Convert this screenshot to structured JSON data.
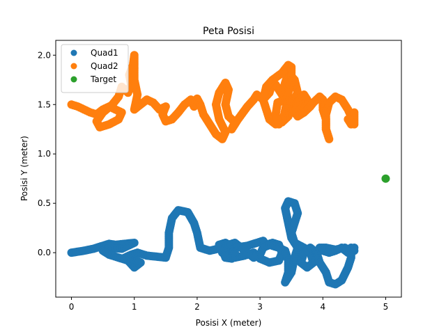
{
  "chart_data": {
    "type": "scatter",
    "title": "Peta Posisi",
    "xlabel": "Posisi X (meter)",
    "ylabel": "Posisi Y (meter)",
    "xlim": [
      -0.25,
      5.25
    ],
    "ylim": [
      -0.45,
      2.15
    ],
    "xticks": [
      0,
      1,
      2,
      3,
      4,
      5
    ],
    "xtick_labels": [
      "0",
      "1",
      "2",
      "3",
      "4",
      "5"
    ],
    "yticks": [
      0.0,
      0.5,
      1.0,
      1.5,
      2.0
    ],
    "ytick_labels": [
      "0.0",
      "0.5",
      "1.0",
      "1.5",
      "2.0"
    ],
    "grid": false,
    "legend_position": "top-left",
    "series": [
      {
        "name": "Quad1",
        "color": "#1f77b4",
        "points": [
          [
            0.0,
            0.0
          ],
          [
            0.2,
            0.02
          ],
          [
            0.35,
            0.04
          ],
          [
            0.5,
            0.07
          ],
          [
            0.6,
            0.09
          ],
          [
            0.7,
            0.08
          ],
          [
            0.85,
            0.09
          ],
          [
            1.0,
            0.1
          ],
          [
            0.8,
            0.04
          ],
          [
            0.6,
            0.05
          ],
          [
            0.5,
            0.02
          ],
          [
            0.6,
            -0.02
          ],
          [
            0.75,
            -0.05
          ],
          [
            0.9,
            -0.08
          ],
          [
            1.0,
            -0.15
          ],
          [
            1.1,
            -0.1
          ],
          [
            0.95,
            -0.06
          ],
          [
            0.85,
            -0.05
          ],
          [
            0.95,
            -0.02
          ],
          [
            1.05,
            0.0
          ],
          [
            1.2,
            -0.03
          ],
          [
            1.35,
            -0.04
          ],
          [
            1.5,
            -0.05
          ],
          [
            1.55,
            0.05
          ],
          [
            1.55,
            0.2
          ],
          [
            1.6,
            0.35
          ],
          [
            1.7,
            0.43
          ],
          [
            1.85,
            0.41
          ],
          [
            1.95,
            0.3
          ],
          [
            2.0,
            0.2
          ],
          [
            2.05,
            0.05
          ],
          [
            2.2,
            0.02
          ],
          [
            2.4,
            0.05
          ],
          [
            2.6,
            0.05
          ],
          [
            2.8,
            0.07
          ],
          [
            2.95,
            0.1
          ],
          [
            3.05,
            0.12
          ],
          [
            3.1,
            0.08
          ],
          [
            3.2,
            0.1
          ],
          [
            3.3,
            0.08
          ],
          [
            3.35,
            0.0
          ],
          [
            3.3,
            -0.08
          ],
          [
            3.15,
            -0.1
          ],
          [
            3.0,
            -0.06
          ],
          [
            2.9,
            0.0
          ],
          [
            2.75,
            -0.03
          ],
          [
            2.6,
            -0.05
          ],
          [
            2.5,
            -0.02
          ],
          [
            2.4,
            0.0
          ],
          [
            2.35,
            0.08
          ],
          [
            2.45,
            0.1
          ],
          [
            2.55,
            0.06
          ],
          [
            2.6,
            0.0
          ],
          [
            2.55,
            -0.06
          ],
          [
            2.45,
            -0.05
          ],
          [
            2.4,
            0.03
          ],
          [
            2.5,
            0.08
          ],
          [
            2.6,
            0.1
          ],
          [
            2.7,
            0.05
          ],
          [
            2.8,
            0.0
          ],
          [
            2.9,
            -0.05
          ],
          [
            3.0,
            -0.02
          ],
          [
            3.05,
            0.05
          ],
          [
            3.15,
            0.08
          ],
          [
            3.3,
            0.05
          ],
          [
            3.4,
            0.02
          ],
          [
            3.45,
            -0.08
          ],
          [
            3.45,
            -0.2
          ],
          [
            3.4,
            -0.3
          ],
          [
            3.5,
            -0.2
          ],
          [
            3.55,
            -0.05
          ],
          [
            3.6,
            0.05
          ],
          [
            3.5,
            0.15
          ],
          [
            3.45,
            0.3
          ],
          [
            3.4,
            0.45
          ],
          [
            3.45,
            0.52
          ],
          [
            3.55,
            0.5
          ],
          [
            3.6,
            0.4
          ],
          [
            3.55,
            0.3
          ],
          [
            3.5,
            0.2
          ],
          [
            3.55,
            0.1
          ],
          [
            3.7,
            0.05
          ],
          [
            3.8,
            0.0
          ],
          [
            3.85,
            -0.1
          ],
          [
            3.75,
            -0.15
          ],
          [
            3.65,
            -0.1
          ],
          [
            3.7,
            0.0
          ],
          [
            3.8,
            0.05
          ],
          [
            3.9,
            0.0
          ],
          [
            3.95,
            -0.1
          ],
          [
            4.05,
            -0.2
          ],
          [
            4.1,
            -0.3
          ],
          [
            4.2,
            -0.32
          ],
          [
            4.3,
            -0.28
          ],
          [
            4.4,
            -0.15
          ],
          [
            4.45,
            -0.05
          ],
          [
            4.45,
            0.05
          ],
          [
            4.5,
            0.02
          ],
          [
            4.4,
            0.0
          ],
          [
            4.3,
            0.05
          ],
          [
            4.2,
            0.02
          ],
          [
            4.1,
            0.0
          ],
          [
            4.0,
            0.02
          ],
          [
            3.95,
            0.05
          ],
          [
            4.05,
            0.05
          ],
          [
            4.2,
            0.03
          ],
          [
            4.35,
            0.05
          ],
          [
            4.45,
            0.0
          ],
          [
            4.5,
            0.05
          ]
        ]
      },
      {
        "name": "Quad2",
        "color": "#ff7f0e",
        "points": [
          [
            0.0,
            1.5
          ],
          [
            0.1,
            1.48
          ],
          [
            0.2,
            1.45
          ],
          [
            0.3,
            1.42
          ],
          [
            0.4,
            1.4
          ],
          [
            0.5,
            1.45
          ],
          [
            0.6,
            1.48
          ],
          [
            0.7,
            1.45
          ],
          [
            0.8,
            1.42
          ],
          [
            0.75,
            1.35
          ],
          [
            0.6,
            1.3
          ],
          [
            0.45,
            1.27
          ],
          [
            0.4,
            1.33
          ],
          [
            0.5,
            1.42
          ],
          [
            0.65,
            1.5
          ],
          [
            0.75,
            1.58
          ],
          [
            0.8,
            1.68
          ],
          [
            0.9,
            1.62
          ],
          [
            0.95,
            1.7
          ],
          [
            0.92,
            1.8
          ],
          [
            0.98,
            1.9
          ],
          [
            1.0,
            2.0
          ],
          [
            1.0,
            1.88
          ],
          [
            1.0,
            1.75
          ],
          [
            1.05,
            1.6
          ],
          [
            1.0,
            1.45
          ],
          [
            1.1,
            1.5
          ],
          [
            1.2,
            1.55
          ],
          [
            1.3,
            1.52
          ],
          [
            1.4,
            1.45
          ],
          [
            1.5,
            1.48
          ],
          [
            1.45,
            1.4
          ],
          [
            1.5,
            1.33
          ],
          [
            1.6,
            1.35
          ],
          [
            1.7,
            1.42
          ],
          [
            1.8,
            1.5
          ],
          [
            1.9,
            1.55
          ],
          [
            1.95,
            1.48
          ],
          [
            2.0,
            1.56
          ],
          [
            2.05,
            1.5
          ],
          [
            2.1,
            1.4
          ],
          [
            2.2,
            1.3
          ],
          [
            2.3,
            1.2
          ],
          [
            2.4,
            1.15
          ],
          [
            2.45,
            1.22
          ],
          [
            2.35,
            1.35
          ],
          [
            2.3,
            1.5
          ],
          [
            2.35,
            1.62
          ],
          [
            2.45,
            1.72
          ],
          [
            2.5,
            1.65
          ],
          [
            2.45,
            1.5
          ],
          [
            2.5,
            1.38
          ],
          [
            2.6,
            1.32
          ],
          [
            2.55,
            1.25
          ],
          [
            2.65,
            1.35
          ],
          [
            2.8,
            1.48
          ],
          [
            2.9,
            1.55
          ],
          [
            2.95,
            1.6
          ],
          [
            3.05,
            1.55
          ],
          [
            3.15,
            1.62
          ],
          [
            3.2,
            1.72
          ],
          [
            3.25,
            1.7
          ],
          [
            3.3,
            1.65
          ],
          [
            3.35,
            1.6
          ],
          [
            3.4,
            1.72
          ],
          [
            3.45,
            1.82
          ],
          [
            3.55,
            1.75
          ],
          [
            3.6,
            1.62
          ],
          [
            3.5,
            1.5
          ],
          [
            3.45,
            1.38
          ],
          [
            3.35,
            1.32
          ],
          [
            3.25,
            1.3
          ],
          [
            3.15,
            1.35
          ],
          [
            3.1,
            1.45
          ],
          [
            3.05,
            1.55
          ],
          [
            3.1,
            1.68
          ],
          [
            3.2,
            1.75
          ],
          [
            3.35,
            1.82
          ],
          [
            3.45,
            1.9
          ],
          [
            3.5,
            1.88
          ],
          [
            3.5,
            1.75
          ],
          [
            3.45,
            1.62
          ],
          [
            3.42,
            1.5
          ],
          [
            3.38,
            1.38
          ],
          [
            3.3,
            1.3
          ],
          [
            3.25,
            1.4
          ],
          [
            3.28,
            1.52
          ],
          [
            3.4,
            1.55
          ],
          [
            3.55,
            1.52
          ],
          [
            3.65,
            1.48
          ],
          [
            3.75,
            1.55
          ],
          [
            3.7,
            1.6
          ],
          [
            3.6,
            1.52
          ],
          [
            3.55,
            1.42
          ],
          [
            3.6,
            1.38
          ],
          [
            3.7,
            1.42
          ],
          [
            3.8,
            1.48
          ],
          [
            3.85,
            1.52
          ],
          [
            3.95,
            1.58
          ],
          [
            4.0,
            1.55
          ],
          [
            4.0,
            1.45
          ],
          [
            4.05,
            1.35
          ],
          [
            4.05,
            1.25
          ],
          [
            4.1,
            1.15
          ],
          [
            4.05,
            1.25
          ],
          [
            4.05,
            1.4
          ],
          [
            4.1,
            1.52
          ],
          [
            4.2,
            1.58
          ],
          [
            4.3,
            1.55
          ],
          [
            4.35,
            1.5
          ],
          [
            4.4,
            1.45
          ],
          [
            4.45,
            1.38
          ],
          [
            4.5,
            1.42
          ],
          [
            4.5,
            1.32
          ],
          [
            4.45,
            1.3
          ],
          [
            4.4,
            1.35
          ],
          [
            4.5,
            1.3
          ]
        ]
      },
      {
        "name": "Target",
        "color": "#2ca02c",
        "points": [
          [
            5.0,
            0.75
          ]
        ]
      }
    ]
  }
}
